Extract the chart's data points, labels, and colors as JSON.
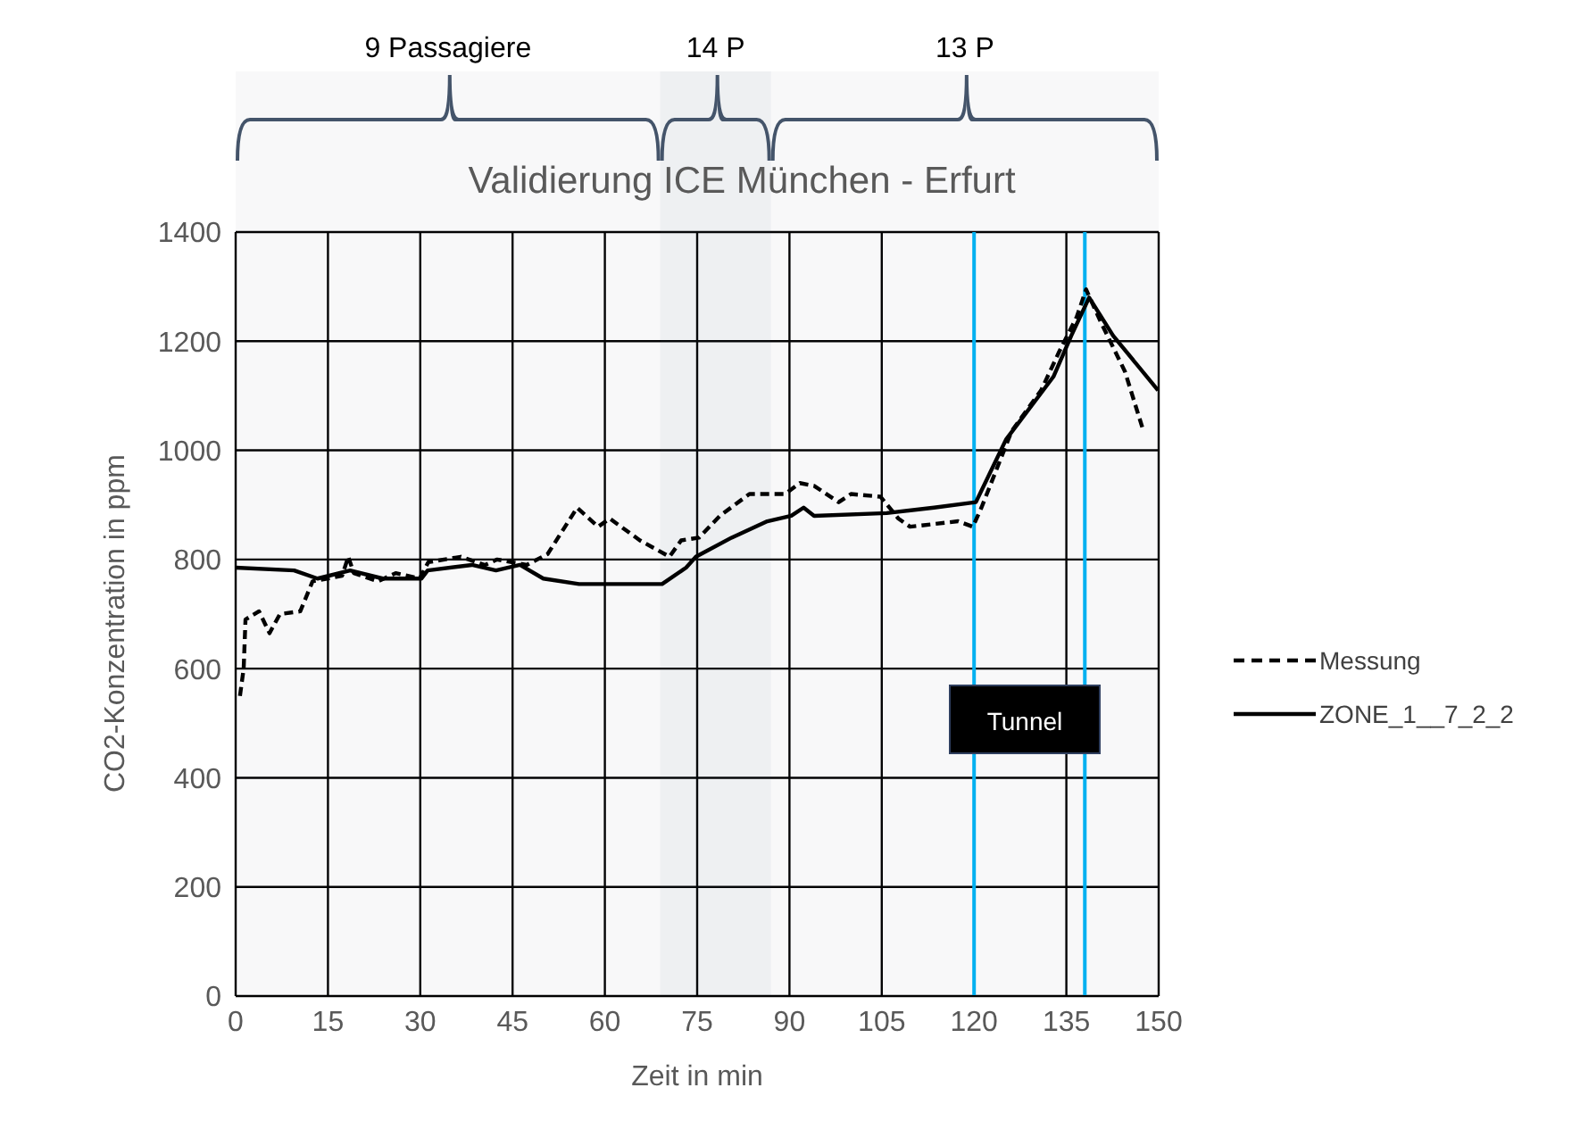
{
  "chart_data": {
    "type": "line",
    "title": "Validierung ICE München - Erfurt",
    "xlabel": "Zeit in min",
    "ylabel": "CO2-Konzentration in ppm",
    "xlim": [
      0,
      150
    ],
    "xticks": [
      0,
      15,
      30,
      45,
      60,
      75,
      90,
      105,
      120,
      135,
      150
    ],
    "ylim": [
      0,
      1400
    ],
    "yticks": [
      0,
      200,
      400,
      600,
      800,
      1000,
      1200,
      1400
    ],
    "grid": true,
    "legend": "right",
    "marker": "none",
    "series": [
      {
        "name": "Messung",
        "color": "#000000",
        "line_style": "dashed",
        "x": [
          0.7,
          1.3,
          1.6,
          3.8,
          5.5,
          7.2,
          10.5,
          12.5,
          17.3,
          18.3,
          19.2,
          23.1,
          26,
          29.9,
          31.3,
          36.6,
          40.5,
          42.5,
          47.3,
          50.7,
          55.5,
          58.9,
          60.8,
          65.7,
          70.5,
          72.4,
          75.3,
          78.7,
          83.5,
          89.3,
          91.7,
          94,
          98,
          100,
          104.8,
          107.7,
          109.6,
          117.4,
          119.8,
          121.2,
          126.1,
          130.9,
          133.8,
          136.7,
          138.2,
          140.6,
          144.5,
          147.4
        ],
        "values": [
          550,
          600,
          690,
          705,
          665,
          700,
          705,
          760,
          770,
          805,
          775,
          760,
          775,
          765,
          795,
          805,
          790,
          800,
          790,
          810,
          895,
          860,
          875,
          835,
          805,
          835,
          840,
          880,
          920,
          920,
          940,
          935,
          905,
          920,
          915,
          875,
          860,
          870,
          860,
          895,
          1035,
          1110,
          1180,
          1245,
          1295,
          1235,
          1145,
          1040
        ]
      },
      {
        "name": "ZONE_1__7_2_2",
        "color": "#000000",
        "line_style": "solid",
        "x": [
          0,
          9.5,
          13.3,
          18.6,
          23.9,
          30.2,
          31.2,
          38.4,
          42.3,
          46.2,
          50,
          55.8,
          69.3,
          73.2,
          74.8,
          80.6,
          86.4,
          90.3,
          92.3,
          94,
          105.8,
          113.5,
          120.3,
          125.2,
          132.9,
          135.8,
          138.7,
          142.6,
          149.9
        ],
        "values": [
          785,
          780,
          765,
          780,
          765,
          765,
          780,
          790,
          780,
          790,
          765,
          755,
          755,
          785,
          805,
          840,
          870,
          880,
          895,
          880,
          885,
          895,
          905,
          1020,
          1135,
          1210,
          1280,
          1210,
          1110
        ]
      }
    ],
    "ref_lines": [
      {
        "axis": "x",
        "value": 120,
        "color": "#00b0f0"
      },
      {
        "axis": "x",
        "value": 138,
        "color": "#00b0f0"
      }
    ],
    "bands": [
      {
        "axis": "x",
        "from": 0,
        "to": 69,
        "label": "9 Passagiere"
      },
      {
        "axis": "x",
        "from": 69,
        "to": 87,
        "label": "14 P"
      },
      {
        "axis": "x",
        "from": 87,
        "to": 150,
        "label": "13 P"
      }
    ],
    "annotations": [
      "Tunnel"
    ]
  }
}
